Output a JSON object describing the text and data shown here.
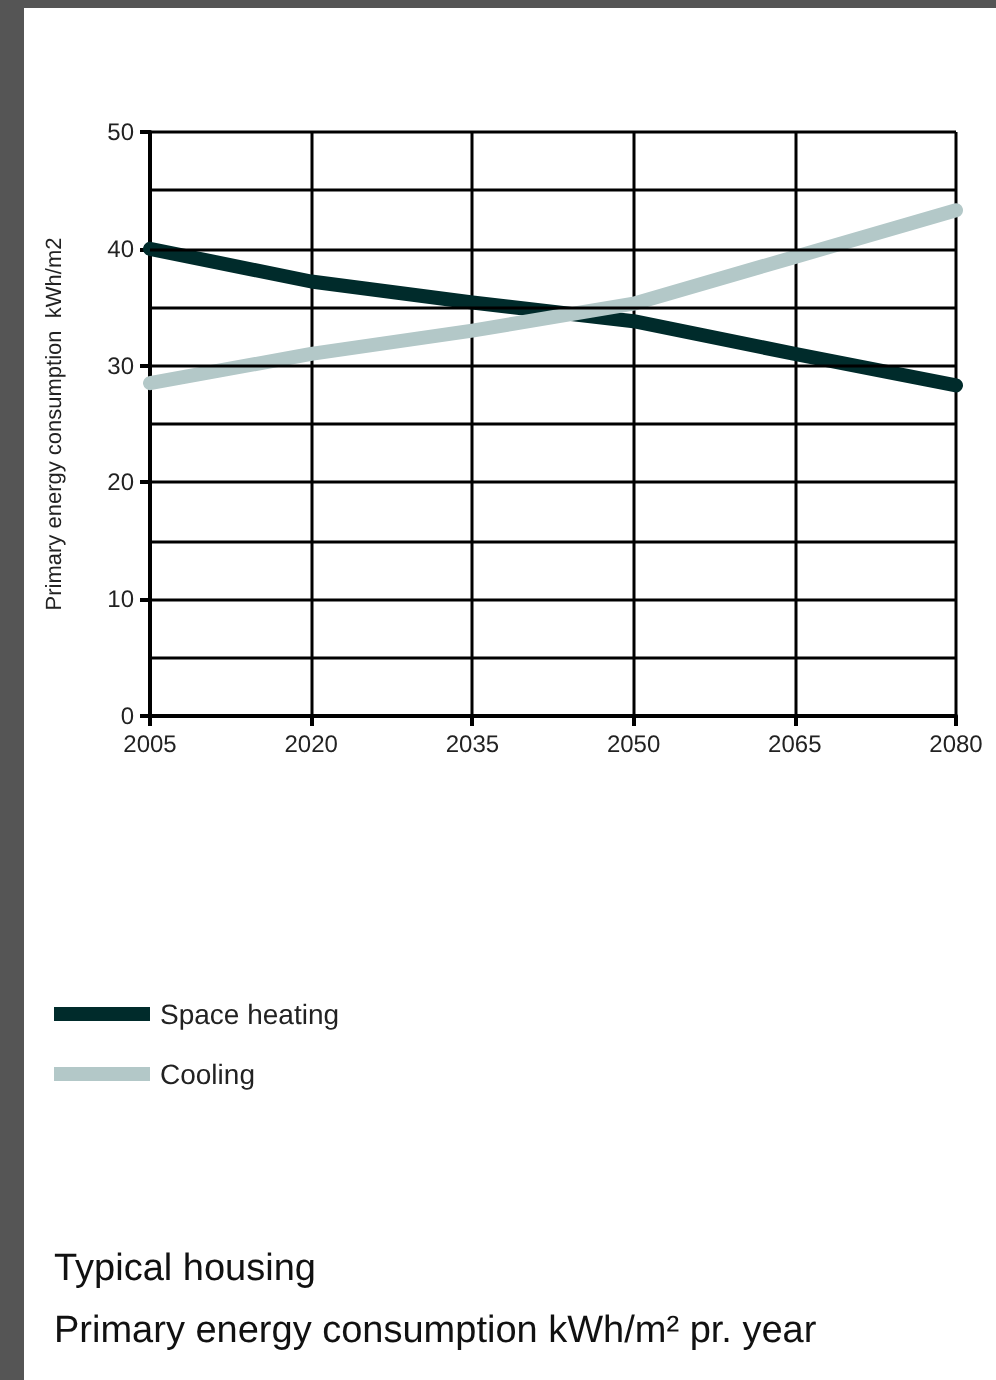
{
  "chart_data": {
    "type": "line",
    "title": "Typical housing",
    "subtitle": "Primary energy consumption kWh/m² pr. year",
    "ylabel": "Primary energy consumption  kWh/m2",
    "x": [
      2005,
      2020,
      2035,
      2050,
      2065,
      2080
    ],
    "xlim": [
      2005,
      2080
    ],
    "xticks": [
      2005,
      2020,
      2035,
      2050,
      2065,
      2080
    ],
    "ylim": [
      0,
      50
    ],
    "yticks": [
      0,
      {
        "value": 5,
        "label": null
      },
      10,
      {
        "value": 15,
        "label": null
      },
      20,
      {
        "value": 25,
        "label": null
      },
      30,
      {
        "value": 35,
        "label": null
      },
      40,
      {
        "value": 45,
        "label": null
      },
      50
    ],
    "series": [
      {
        "name": "Space heating",
        "color": "#002b2b",
        "values": [
          40,
          37.2,
          35.4,
          33.8,
          31,
          28.3
        ]
      },
      {
        "name": "Cooling",
        "color": "#b3c8c8",
        "values": [
          28.5,
          31,
          33,
          35.3,
          39.3,
          43.3
        ]
      }
    ],
    "grid": true,
    "legend": "bottom left",
    "line_style": "solid"
  }
}
